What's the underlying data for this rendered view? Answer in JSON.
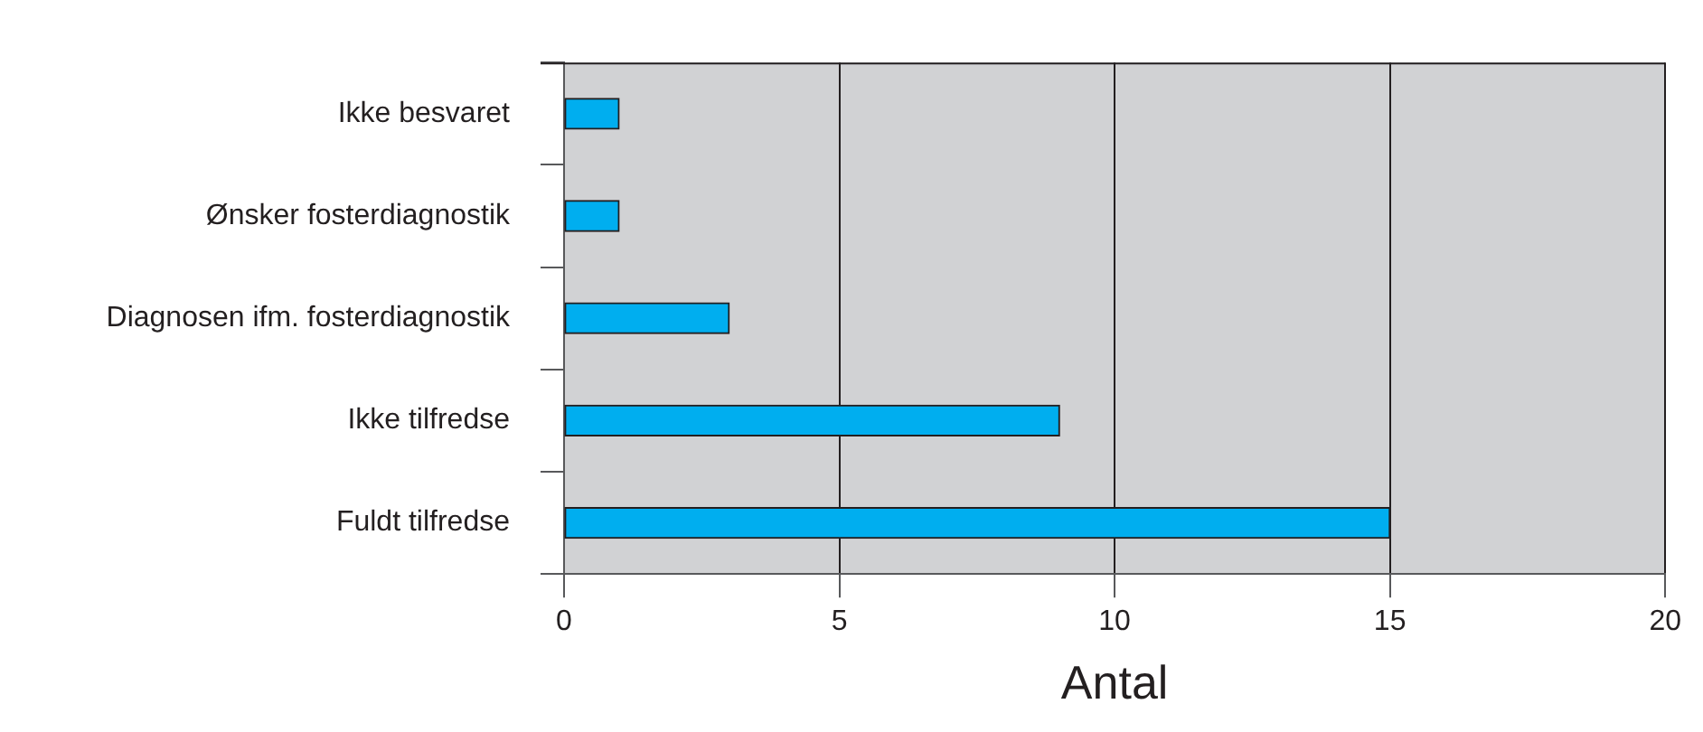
{
  "chart_data": {
    "type": "bar",
    "orientation": "horizontal",
    "categories": [
      "Ikke besvaret",
      "Ønsker fosterdiagnostik",
      "Diagnosen ifm. fosterdiagnostik",
      "Ikke tilfredse",
      "Fuldt tilfredse"
    ],
    "values": [
      1,
      1,
      3,
      9,
      15
    ],
    "color": "#00aeef",
    "xlabel": "Antal",
    "xlim": [
      0,
      20
    ],
    "xticks": [
      0,
      5,
      10,
      15,
      20
    ],
    "grid": "x",
    "legend": false
  }
}
